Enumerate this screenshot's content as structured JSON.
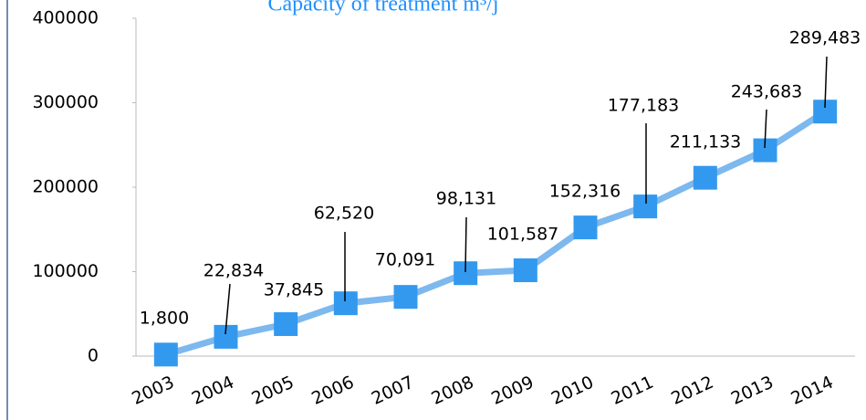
{
  "chart_data": {
    "type": "line",
    "title": "Capacity of treatment m³/j",
    "categories": [
      "2003",
      "2004",
      "2005",
      "2006",
      "2007",
      "2008",
      "2009",
      "2010",
      "2011",
      "2012",
      "2013",
      "2014"
    ],
    "series": [
      {
        "name": "Capacity of treatment",
        "color": "#3399ee",
        "values": [
          1800,
          22834,
          37845,
          62520,
          70091,
          98131,
          101587,
          152316,
          177183,
          211133,
          243683,
          289483
        ],
        "value_labels": [
          "1,800",
          "22,834",
          "37,845",
          "62,520",
          "70,091",
          "98,131",
          "101,587",
          "152,316",
          "177,183",
          "211,133",
          "243,683",
          "289,483"
        ]
      }
    ],
    "ylim": [
      0,
      400000
    ],
    "yticks": [
      0,
      100000,
      200000,
      300000,
      400000
    ]
  }
}
